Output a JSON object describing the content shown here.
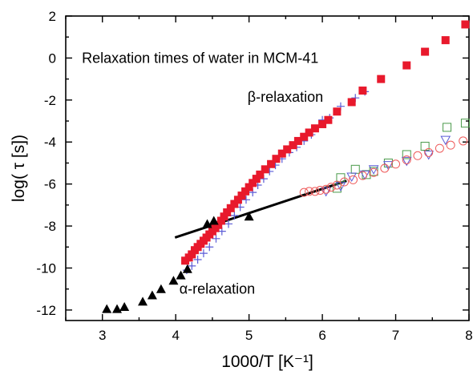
{
  "chart_data": {
    "type": "scatter",
    "title": "",
    "xlabel": "1000/T [K⁻¹]",
    "ylabel": "log( τ [s])",
    "xlim": [
      2.5,
      8
    ],
    "ylim": [
      -12.5,
      2
    ],
    "xticks": [
      "3",
      "4",
      "5",
      "6",
      "7",
      "8"
    ],
    "yticks": [
      "2",
      "0",
      "-2",
      "-4",
      "-6",
      "-8",
      "-10",
      "-12"
    ],
    "xtick_values": [
      3,
      4,
      5,
      6,
      7,
      8
    ],
    "ytick_values": [
      2,
      0,
      -2,
      -4,
      -6,
      -8,
      -10,
      -12
    ],
    "grid": false,
    "annotations": [
      {
        "text": "Relaxation times of water in MCM-41",
        "x": 2.72,
        "y": 0
      },
      {
        "text": "β-relaxation",
        "x": 4.98,
        "y": -1.85
      },
      {
        "text": "α-relaxation",
        "x": 4.05,
        "y": -11.0
      }
    ],
    "series": [
      {
        "marker": "filled-square",
        "color": "#e8192c",
        "x": [
          4.13,
          4.18,
          4.22,
          4.26,
          4.3,
          4.34,
          4.38,
          4.42,
          4.46,
          4.5,
          4.54,
          4.58,
          4.62,
          4.66,
          4.7,
          4.75,
          4.8,
          4.85,
          4.9,
          4.95,
          5.0,
          5.05,
          5.1,
          5.15,
          5.22,
          5.3,
          5.37,
          5.45,
          5.52,
          5.6,
          5.67,
          5.75,
          5.82,
          5.9,
          6.0,
          6.08,
          6.2,
          6.4,
          6.55,
          6.8,
          7.15,
          7.4,
          7.68,
          7.95
        ],
        "y": [
          -9.65,
          -9.5,
          -9.35,
          -9.15,
          -9.0,
          -8.85,
          -8.7,
          -8.55,
          -8.4,
          -8.25,
          -8.1,
          -7.95,
          -7.75,
          -7.55,
          -7.35,
          -7.15,
          -6.95,
          -6.75,
          -6.55,
          -6.35,
          -6.15,
          -5.95,
          -5.75,
          -5.55,
          -5.3,
          -5.05,
          -4.8,
          -4.55,
          -4.35,
          -4.15,
          -3.95,
          -3.75,
          -3.55,
          -3.35,
          -3.15,
          -2.95,
          -2.55,
          -2.1,
          -1.55,
          -1.0,
          -0.35,
          0.3,
          0.85,
          1.6
        ]
      },
      {
        "marker": "plus",
        "color": "#5b5bd6",
        "x": [
          4.15,
          4.22,
          4.3,
          4.38,
          4.46,
          4.55,
          4.63,
          4.72,
          4.8,
          4.88,
          4.96,
          5.05,
          5.12,
          5.2,
          5.28,
          5.36,
          5.45,
          5.55,
          5.65,
          5.75,
          5.85,
          6.0,
          6.1,
          6.25,
          6.45,
          6.58
        ],
        "y": [
          -10.1,
          -9.9,
          -9.6,
          -9.3,
          -9.0,
          -8.6,
          -8.25,
          -7.9,
          -7.5,
          -7.1,
          -6.75,
          -6.4,
          -6.05,
          -5.75,
          -5.4,
          -5.1,
          -4.8,
          -4.5,
          -4.25,
          -3.95,
          -3.65,
          -2.95,
          -2.85,
          -2.3,
          -1.9,
          -1.6
        ]
      },
      {
        "marker": "filled-triangle",
        "color": "#000000",
        "x": [
          3.06,
          3.2,
          3.3,
          3.55,
          3.68,
          3.8,
          3.97,
          4.07,
          4.16,
          4.43,
          4.52,
          5.0
        ],
        "y": [
          -11.95,
          -11.95,
          -11.85,
          -11.6,
          -11.3,
          -11.0,
          -10.6,
          -10.35,
          -10.05,
          -7.9,
          -7.75,
          -7.55
        ]
      },
      {
        "marker": "open-circle",
        "color": "#ee5a5a",
        "x": [
          5.75,
          5.82,
          5.9,
          5.97,
          6.05,
          6.12,
          6.2,
          6.3,
          6.42,
          6.55,
          6.7,
          6.85,
          7.0,
          7.15,
          7.3,
          7.45,
          7.6,
          7.75,
          7.92
        ],
        "y": [
          -6.4,
          -6.35,
          -6.35,
          -6.3,
          -6.25,
          -6.15,
          -6.05,
          -5.9,
          -5.8,
          -5.6,
          -5.45,
          -5.25,
          -5.05,
          -4.85,
          -4.65,
          -4.5,
          -4.3,
          -4.15,
          -3.95
        ]
      },
      {
        "marker": "open-square",
        "color": "#4a9a4a",
        "x": [
          6.2,
          6.25,
          6.45,
          6.6,
          6.7,
          6.9,
          7.15,
          7.4,
          7.7,
          7.95
        ],
        "y": [
          -6.2,
          -5.7,
          -5.3,
          -5.55,
          -5.4,
          -5.0,
          -4.6,
          -4.2,
          -3.3,
          -3.1
        ]
      },
      {
        "marker": "open-triangle-down",
        "color": "#5b5bd6",
        "x": [
          6.05,
          6.25,
          6.4,
          6.58,
          6.7,
          6.9,
          7.15,
          7.45,
          7.68
        ],
        "y": [
          -6.35,
          -6.1,
          -5.65,
          -5.55,
          -5.3,
          -5.1,
          -4.9,
          -4.6,
          -3.9
        ]
      }
    ],
    "fit_line": {
      "x": [
        3.99,
        6.33
      ],
      "y": [
        -8.55,
        -5.85
      ]
    }
  }
}
